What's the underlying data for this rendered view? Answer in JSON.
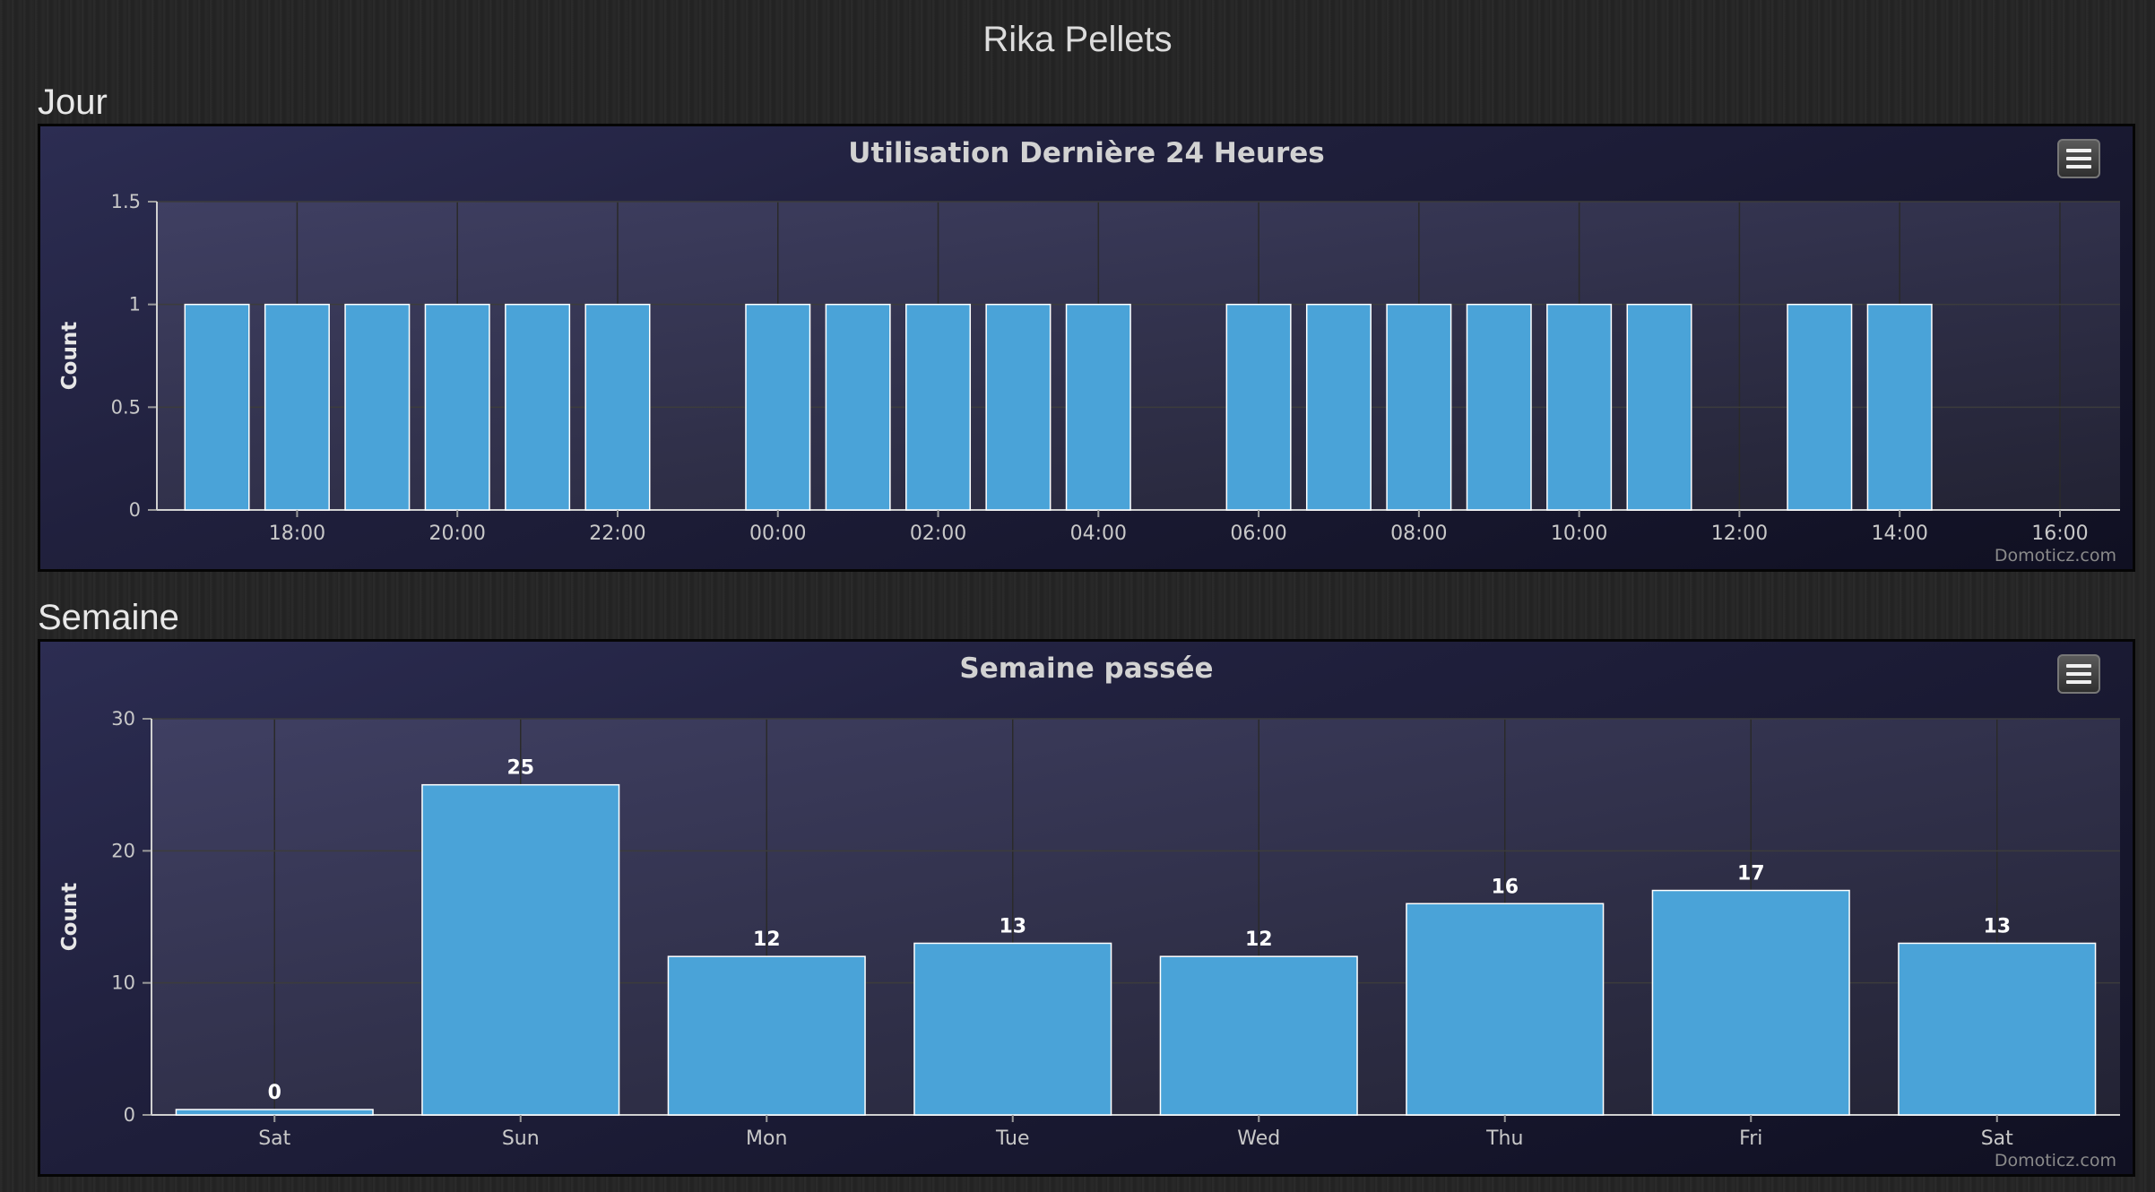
{
  "page_title": "Rika Pellets",
  "sections": [
    {
      "title": "Jour"
    },
    {
      "title": "Semaine"
    }
  ],
  "credit": "Domoticz.com",
  "chart_data": [
    {
      "type": "bar",
      "title": "Utilisation Dernière 24 Heures",
      "ylabel": "Count",
      "xlabel": "",
      "ylim": [
        0,
        1.5
      ],
      "yticks": [
        "0",
        "0.5",
        "1",
        "1.5"
      ],
      "ytick_values": [
        0,
        0.5,
        1,
        1.5
      ],
      "x_ticks": [
        "18:00",
        "20:00",
        "22:00",
        "00:00",
        "02:00",
        "04:00",
        "06:00",
        "08:00",
        "10:00",
        "12:00",
        "14:00",
        "16:00"
      ],
      "x_tick_hours": [
        18,
        20,
        22,
        24,
        26,
        28,
        30,
        32,
        34,
        36,
        38,
        40
      ],
      "x_range_hours": [
        16.25,
        40.75
      ],
      "categories": [
        "17:00",
        "18:00",
        "19:00",
        "20:00",
        "21:00",
        "22:00",
        "23:00",
        "00:00",
        "01:00",
        "02:00",
        "03:00",
        "04:00",
        "05:00",
        "06:00",
        "07:00",
        "08:00",
        "09:00",
        "10:00",
        "11:00",
        "12:00",
        "13:00",
        "14:00"
      ],
      "values": [
        1,
        1,
        1,
        1,
        1,
        1,
        0,
        1,
        1,
        1,
        1,
        1,
        0,
        1,
        1,
        1,
        1,
        1,
        1,
        0,
        1,
        1
      ],
      "bar_color": "#4aa3d8",
      "grid": true,
      "data_labels": false
    },
    {
      "type": "bar",
      "title": "Semaine passée",
      "ylabel": "Count",
      "xlabel": "",
      "ylim": [
        0,
        30
      ],
      "yticks": [
        "0",
        "10",
        "20",
        "30"
      ],
      "ytick_values": [
        0,
        10,
        20,
        30
      ],
      "categories": [
        "Sat",
        "Sun",
        "Mon",
        "Tue",
        "Wed",
        "Thu",
        "Fri",
        "Sat"
      ],
      "values": [
        0,
        25,
        12,
        13,
        12,
        16,
        17,
        13
      ],
      "bar_color": "#4aa3d8",
      "grid": true,
      "data_labels": true
    }
  ]
}
